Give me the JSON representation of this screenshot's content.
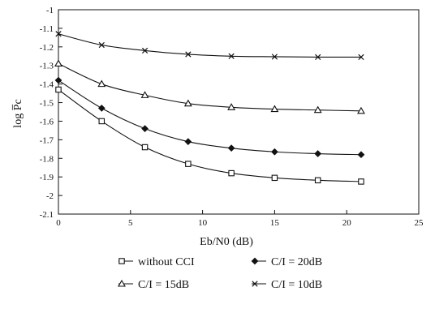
{
  "chart_data": {
    "type": "line",
    "title": "",
    "xlabel": "Eb/N0 (dB)",
    "ylabel": "log P̅c",
    "xlim": [
      0,
      25
    ],
    "ylim": [
      -2.1,
      -1
    ],
    "xticks": [
      "0",
      "5",
      "10",
      "15",
      "20",
      "25"
    ],
    "yticks": [
      "-1",
      "-1.1",
      "-1.2",
      "-1.3",
      "-1.4",
      "-1.5",
      "-1.6",
      "-1.7",
      "-1.8",
      "-1.9",
      "-2",
      "-2.1"
    ],
    "grid": false,
    "legend_position": "bottom",
    "x": [
      0,
      3,
      6,
      9,
      12,
      15,
      18,
      21
    ],
    "series": [
      {
        "name": "without CCI",
        "marker": "open-square",
        "values": [
          -1.43,
          -1.6,
          -1.74,
          -1.83,
          -1.88,
          -1.905,
          -1.918,
          -1.925
        ]
      },
      {
        "name": "C/I = 20dB",
        "marker": "filled-diamond",
        "values": [
          -1.38,
          -1.53,
          -1.64,
          -1.71,
          -1.745,
          -1.765,
          -1.775,
          -1.78
        ]
      },
      {
        "name": "C/I = 15dB",
        "marker": "open-triangle",
        "values": [
          -1.29,
          -1.4,
          -1.46,
          -1.505,
          -1.525,
          -1.535,
          -1.54,
          -1.545
        ]
      },
      {
        "name": "C/I = 10dB",
        "marker": "x",
        "values": [
          -1.13,
          -1.19,
          -1.22,
          -1.24,
          -1.25,
          -1.253,
          -1.255,
          -1.255
        ]
      }
    ]
  }
}
